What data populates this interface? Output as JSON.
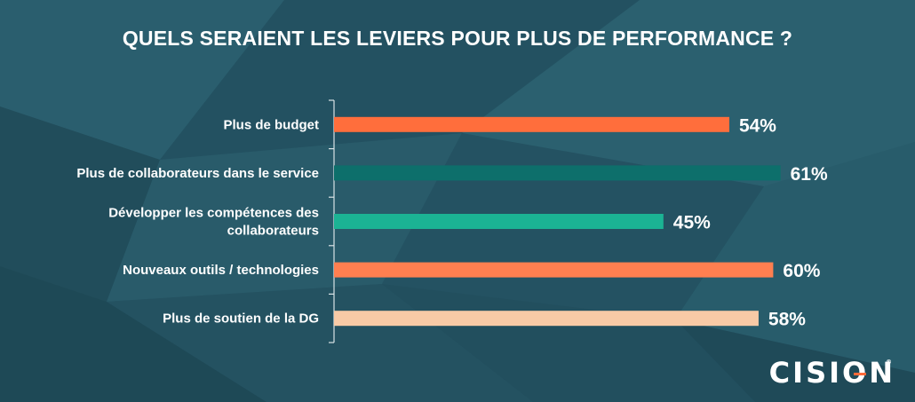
{
  "chart_data": {
    "type": "bar",
    "orientation": "horizontal",
    "title": "QUELS SERAIENT LES LEVIERS POUR PLUS DE PERFORMANCE ?",
    "categories": [
      [
        "Plus de budget"
      ],
      [
        "Plus de collaborateurs dans le service"
      ],
      [
        "Développer les compétences des",
        "collaborateurs"
      ],
      [
        "Nouveaux outils / technologies"
      ],
      [
        "Plus de soutien de la DG"
      ]
    ],
    "values": [
      54,
      61,
      45,
      60,
      58
    ],
    "value_labels": [
      "54%",
      "61%",
      "45%",
      "60%",
      "58%"
    ],
    "bar_colors": [
      "#ff6e3c",
      "#0d6f6b",
      "#1bb394",
      "#ff7f50",
      "#f8caa6"
    ],
    "xlim": [
      0,
      100
    ],
    "grid": false,
    "legend": "none"
  },
  "logo": {
    "text": "CISION",
    "mark": "®"
  }
}
